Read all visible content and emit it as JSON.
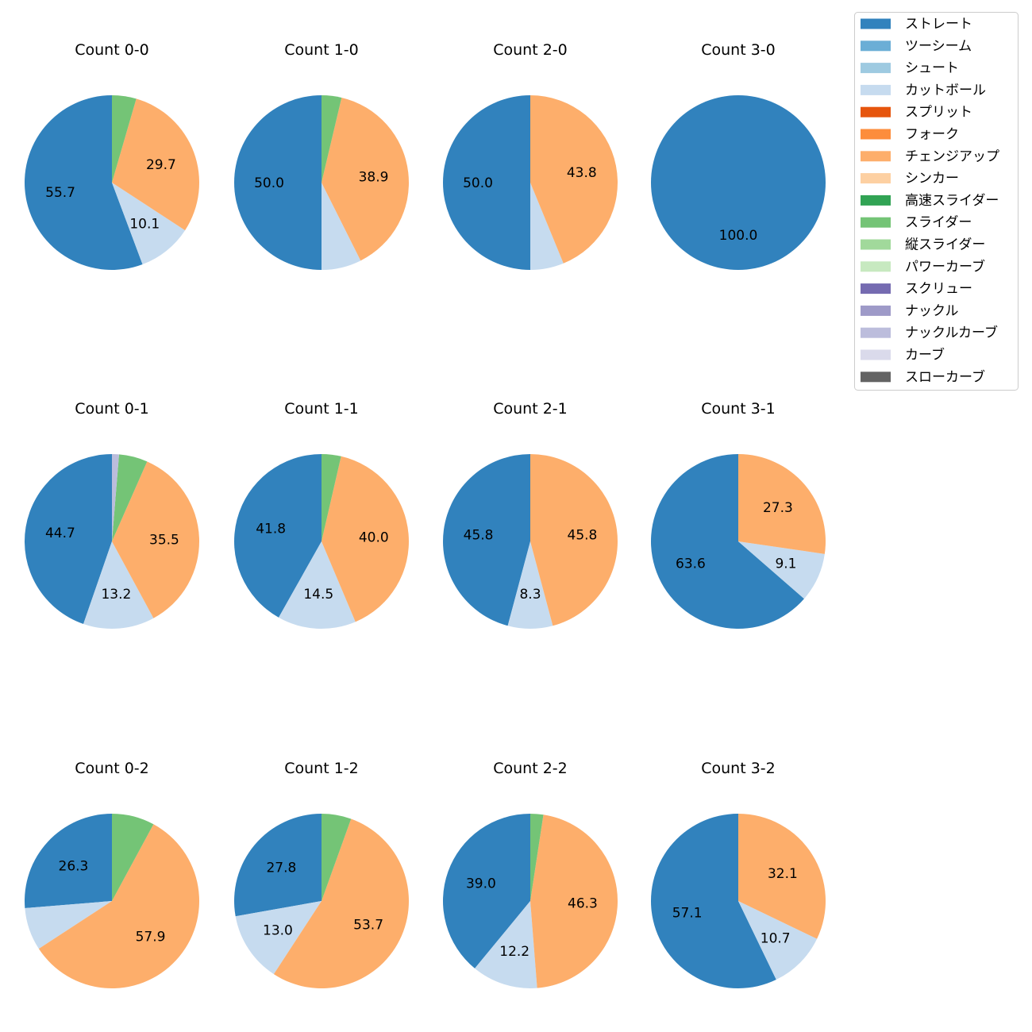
{
  "legend": [
    {
      "label": "ストレート",
      "color": "#3182bd"
    },
    {
      "label": "ツーシーム",
      "color": "#6baed6"
    },
    {
      "label": "シュート",
      "color": "#9ecae1"
    },
    {
      "label": "カットボール",
      "color": "#c6dbef"
    },
    {
      "label": "スプリット",
      "color": "#e6550d"
    },
    {
      "label": "フォーク",
      "color": "#fd8d3c"
    },
    {
      "label": "チェンジアップ",
      "color": "#fdae6b"
    },
    {
      "label": "シンカー",
      "color": "#fdd0a2"
    },
    {
      "label": "高速スライダー",
      "color": "#31a354"
    },
    {
      "label": "スライダー",
      "color": "#74c476"
    },
    {
      "label": "縦スライダー",
      "color": "#a1d99b"
    },
    {
      "label": "パワーカーブ",
      "color": "#c7e9c0"
    },
    {
      "label": "スクリュー",
      "color": "#756bb1"
    },
    {
      "label": "ナックル",
      "color": "#9e9ac8"
    },
    {
      "label": "ナックルカーブ",
      "color": "#bcbddc"
    },
    {
      "label": "カーブ",
      "color": "#dadaeb"
    },
    {
      "label": "スローカーブ",
      "color": "#636363"
    }
  ],
  "chart_data": [
    {
      "type": "pie",
      "title": "Count 0-0",
      "slices": [
        {
          "pitch": "ストレート",
          "value": 55.7,
          "label": "55.7"
        },
        {
          "pitch": "カットボール",
          "value": 10.1,
          "label": "10.1"
        },
        {
          "pitch": "チェンジアップ",
          "value": 29.7,
          "label": "29.7"
        },
        {
          "pitch": "スライダー",
          "value": 4.5,
          "label": ""
        }
      ]
    },
    {
      "type": "pie",
      "title": "Count 1-0",
      "slices": [
        {
          "pitch": "ストレート",
          "value": 50.0,
          "label": "50.0"
        },
        {
          "pitch": "カットボール",
          "value": 7.4,
          "label": ""
        },
        {
          "pitch": "チェンジアップ",
          "value": 38.9,
          "label": "38.9"
        },
        {
          "pitch": "スライダー",
          "value": 3.7,
          "label": ""
        }
      ]
    },
    {
      "type": "pie",
      "title": "Count 2-0",
      "slices": [
        {
          "pitch": "ストレート",
          "value": 50.0,
          "label": "50.0"
        },
        {
          "pitch": "カットボール",
          "value": 6.2,
          "label": ""
        },
        {
          "pitch": "チェンジアップ",
          "value": 43.8,
          "label": "43.8"
        }
      ]
    },
    {
      "type": "pie",
      "title": "Count 3-0",
      "slices": [
        {
          "pitch": "ストレート",
          "value": 100.0,
          "label": "100.0"
        }
      ]
    },
    {
      "type": "pie",
      "title": "Count 0-1",
      "slices": [
        {
          "pitch": "ストレート",
          "value": 44.7,
          "label": "44.7"
        },
        {
          "pitch": "カットボール",
          "value": 13.2,
          "label": "13.2"
        },
        {
          "pitch": "チェンジアップ",
          "value": 35.5,
          "label": "35.5"
        },
        {
          "pitch": "スライダー",
          "value": 5.3,
          "label": ""
        },
        {
          "pitch": "ナックルカーブ",
          "value": 1.3,
          "label": ""
        }
      ]
    },
    {
      "type": "pie",
      "title": "Count 1-1",
      "slices": [
        {
          "pitch": "ストレート",
          "value": 41.8,
          "label": "41.8"
        },
        {
          "pitch": "カットボール",
          "value": 14.5,
          "label": "14.5"
        },
        {
          "pitch": "チェンジアップ",
          "value": 40.0,
          "label": "40.0"
        },
        {
          "pitch": "スライダー",
          "value": 3.6,
          "label": ""
        }
      ]
    },
    {
      "type": "pie",
      "title": "Count 2-1",
      "slices": [
        {
          "pitch": "ストレート",
          "value": 45.8,
          "label": "45.8"
        },
        {
          "pitch": "カットボール",
          "value": 8.3,
          "label": "8.3"
        },
        {
          "pitch": "チェンジアップ",
          "value": 45.8,
          "label": "45.8"
        }
      ]
    },
    {
      "type": "pie",
      "title": "Count 3-1",
      "slices": [
        {
          "pitch": "ストレート",
          "value": 63.6,
          "label": "63.6"
        },
        {
          "pitch": "カットボール",
          "value": 9.1,
          "label": "9.1"
        },
        {
          "pitch": "チェンジアップ",
          "value": 27.3,
          "label": "27.3"
        }
      ]
    },
    {
      "type": "pie",
      "title": "Count 0-2",
      "slices": [
        {
          "pitch": "ストレート",
          "value": 26.3,
          "label": "26.3"
        },
        {
          "pitch": "カットボール",
          "value": 7.9,
          "label": ""
        },
        {
          "pitch": "チェンジアップ",
          "value": 57.9,
          "label": "57.9"
        },
        {
          "pitch": "スライダー",
          "value": 7.9,
          "label": ""
        }
      ]
    },
    {
      "type": "pie",
      "title": "Count 1-2",
      "slices": [
        {
          "pitch": "ストレート",
          "value": 27.8,
          "label": "27.8"
        },
        {
          "pitch": "カットボール",
          "value": 13.0,
          "label": "13.0"
        },
        {
          "pitch": "チェンジアップ",
          "value": 53.7,
          "label": "53.7"
        },
        {
          "pitch": "スライダー",
          "value": 5.5,
          "label": ""
        }
      ]
    },
    {
      "type": "pie",
      "title": "Count 2-2",
      "slices": [
        {
          "pitch": "ストレート",
          "value": 39.0,
          "label": "39.0"
        },
        {
          "pitch": "カットボール",
          "value": 12.2,
          "label": "12.2"
        },
        {
          "pitch": "チェンジアップ",
          "value": 46.3,
          "label": "46.3"
        },
        {
          "pitch": "スライダー",
          "value": 2.4,
          "label": ""
        }
      ]
    },
    {
      "type": "pie",
      "title": "Count 3-2",
      "slices": [
        {
          "pitch": "ストレート",
          "value": 57.1,
          "label": "57.1"
        },
        {
          "pitch": "カットボール",
          "value": 10.7,
          "label": "10.7"
        },
        {
          "pitch": "チェンジアップ",
          "value": 32.1,
          "label": "32.1"
        }
      ]
    }
  ]
}
